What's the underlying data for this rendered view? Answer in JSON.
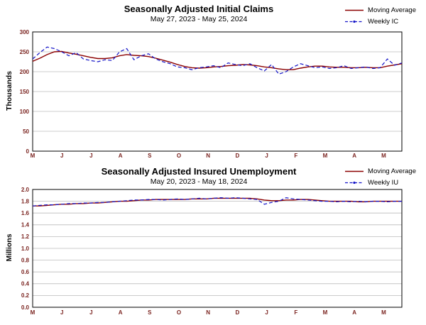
{
  "chart_data": [
    {
      "type": "line",
      "title": "Seasonally Adjusted Initial Claims",
      "subtitle": "May 27, 2023 - May 25, 2024",
      "ylabel": "Thousands",
      "xlabel": "",
      "ylim": [
        0,
        300
      ],
      "ytick_labels": [
        "0",
        "50",
        "100",
        "150",
        "200",
        "250",
        "300"
      ],
      "x_tick_labels": [
        "M",
        "J",
        "J",
        "A",
        "S",
        "O",
        "N",
        "D",
        "J",
        "F",
        "M",
        "A",
        "M"
      ],
      "grid": true,
      "legend_position": "top-right",
      "axis_label_color": "#7b2420",
      "border_color": "#000000",
      "grid_color": "#bbbbbb",
      "series": [
        {
          "name": "Moving Average",
          "color": "#8b0000",
          "style": "solid",
          "values": [
            226,
            234,
            243,
            250,
            251,
            247,
            244,
            240,
            236,
            233,
            233,
            235,
            240,
            243,
            241,
            240,
            238,
            234,
            229,
            224,
            218,
            213,
            210,
            209,
            210,
            212,
            213,
            215,
            216,
            218,
            217,
            215,
            212,
            210,
            207,
            205,
            205,
            209,
            212,
            214,
            214,
            212,
            211,
            211,
            210,
            210,
            211,
            210,
            210,
            214,
            217,
            220
          ]
        },
        {
          "name": "Weekly IC",
          "color": "#1414c8",
          "style": "dashed",
          "values": [
            232,
            248,
            262,
            258,
            250,
            240,
            248,
            232,
            228,
            225,
            230,
            228,
            250,
            258,
            230,
            240,
            245,
            232,
            225,
            220,
            212,
            210,
            205,
            210,
            212,
            215,
            210,
            222,
            218,
            215,
            220,
            210,
            202,
            218,
            194,
            200,
            212,
            220,
            215,
            210,
            212,
            208,
            210,
            215,
            208,
            210,
            212,
            208,
            210,
            232,
            216,
            222
          ]
        }
      ]
    },
    {
      "type": "line",
      "title": "Seasonally Adjusted Insured Unemployment",
      "subtitle": "May 20, 2023 - May 18, 2024",
      "ylabel": "Millions",
      "xlabel": "",
      "ylim": [
        0,
        2
      ],
      "ytick_labels": [
        "0.0",
        "0.2",
        "0.4",
        "0.6",
        "0.8",
        "1.0",
        "1.2",
        "1.4",
        "1.6",
        "1.8",
        "2.0"
      ],
      "x_tick_labels": [
        "M",
        "J",
        "J",
        "A",
        "S",
        "O",
        "N",
        "D",
        "J",
        "F",
        "M",
        "A",
        "M"
      ],
      "grid": true,
      "legend_position": "top-right",
      "axis_label_color": "#7b2420",
      "border_color": "#000000",
      "grid_color": "#bbbbbb",
      "series": [
        {
          "name": "Moving Average",
          "color": "#8b0000",
          "style": "solid",
          "values": [
            1.72,
            1.72,
            1.73,
            1.74,
            1.75,
            1.75,
            1.76,
            1.76,
            1.77,
            1.77,
            1.78,
            1.79,
            1.8,
            1.8,
            1.81,
            1.82,
            1.82,
            1.83,
            1.83,
            1.83,
            1.83,
            1.83,
            1.84,
            1.84,
            1.84,
            1.85,
            1.85,
            1.85,
            1.85,
            1.85,
            1.85,
            1.84,
            1.82,
            1.81,
            1.81,
            1.82,
            1.82,
            1.83,
            1.83,
            1.82,
            1.81,
            1.8,
            1.8,
            1.8,
            1.8,
            1.79,
            1.79,
            1.8,
            1.8,
            1.8,
            1.8,
            1.8
          ]
        },
        {
          "name": "Weekly IU",
          "color": "#1414c8",
          "style": "dashed",
          "values": [
            1.72,
            1.73,
            1.74,
            1.74,
            1.75,
            1.76,
            1.76,
            1.77,
            1.77,
            1.78,
            1.78,
            1.79,
            1.8,
            1.81,
            1.82,
            1.82,
            1.83,
            1.83,
            1.82,
            1.83,
            1.84,
            1.83,
            1.84,
            1.85,
            1.84,
            1.85,
            1.86,
            1.85,
            1.86,
            1.85,
            1.84,
            1.83,
            1.75,
            1.78,
            1.8,
            1.86,
            1.84,
            1.83,
            1.82,
            1.81,
            1.8,
            1.8,
            1.79,
            1.8,
            1.79,
            1.8,
            1.79,
            1.8,
            1.8,
            1.79,
            1.8,
            1.8
          ]
        }
      ]
    }
  ]
}
